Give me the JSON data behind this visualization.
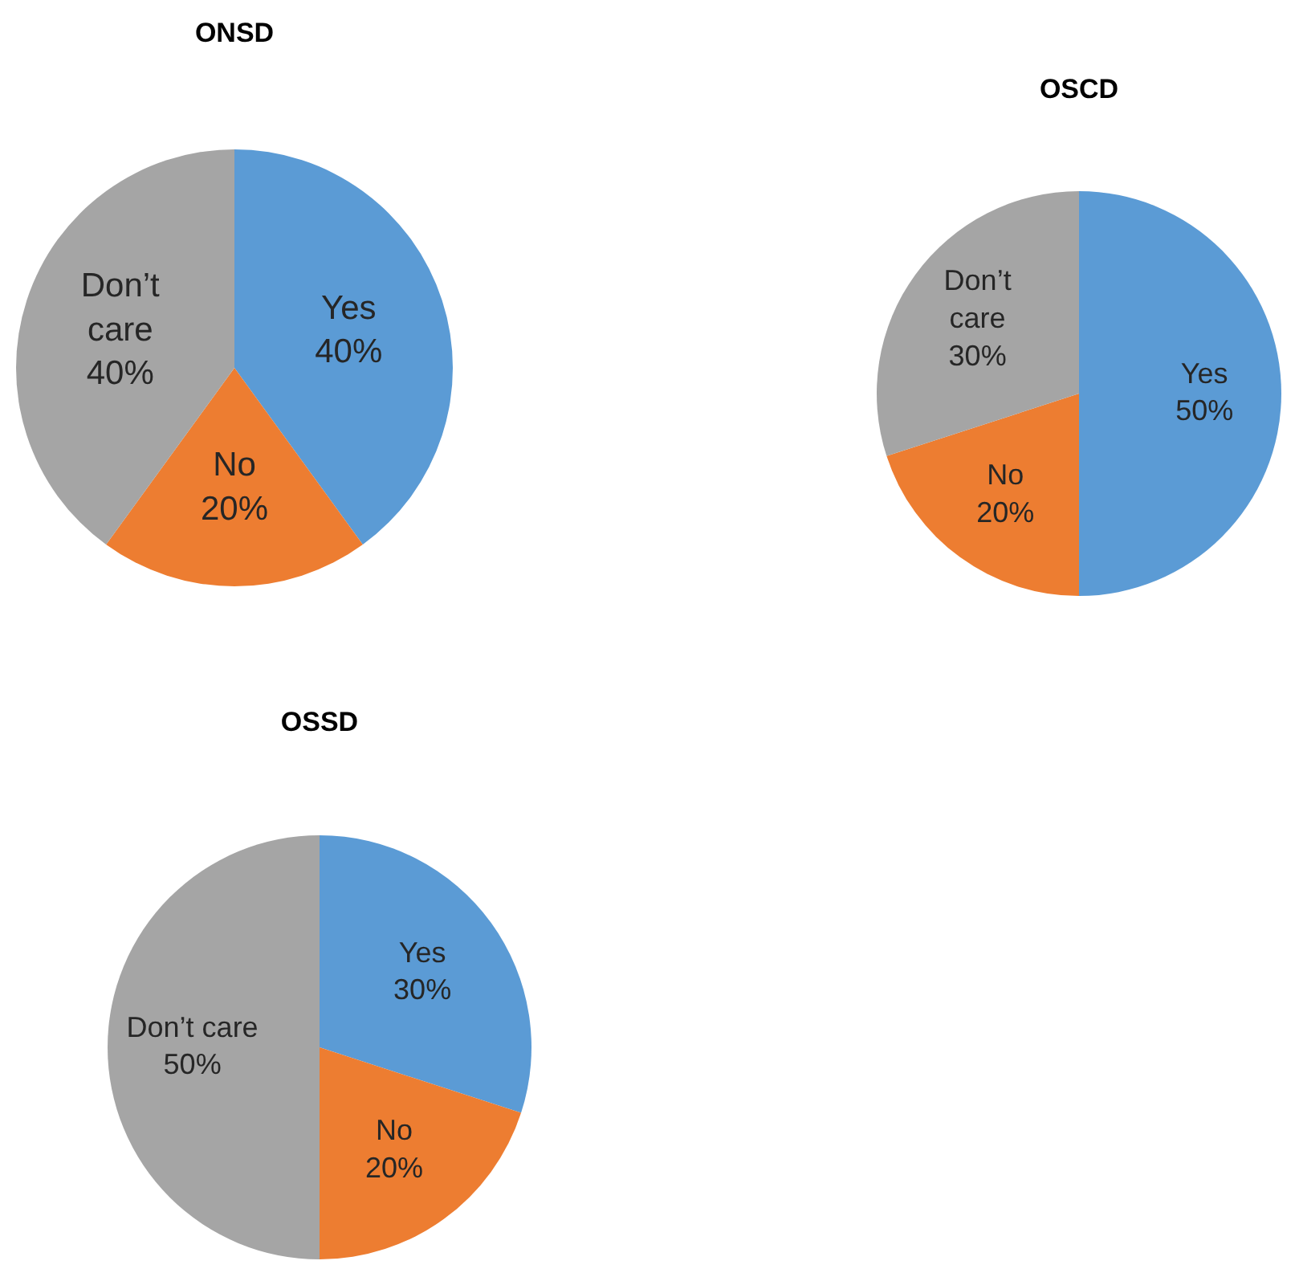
{
  "chart_data": [
    {
      "type": "pie",
      "title": "ONSD",
      "categories": [
        "Yes",
        "No",
        "Don’t care"
      ],
      "values": [
        40,
        20,
        40
      ],
      "value_labels": [
        "40%",
        "20%",
        "40%"
      ],
      "colors": [
        "#5b9bd5",
        "#ed7d31",
        "#a5a5a5"
      ]
    },
    {
      "type": "pie",
      "title": "OSCD",
      "categories": [
        "Yes",
        "No",
        "Don’t care"
      ],
      "values": [
        50,
        20,
        30
      ],
      "value_labels": [
        "50%",
        "20%",
        "30%"
      ],
      "colors": [
        "#5b9bd5",
        "#ed7d31",
        "#a5a5a5"
      ]
    },
    {
      "type": "pie",
      "title": "OSSD",
      "categories": [
        "Yes",
        "No",
        "Don’t care"
      ],
      "values": [
        30,
        20,
        50
      ],
      "value_labels": [
        "30%",
        "20%",
        "50%"
      ],
      "colors": [
        "#5b9bd5",
        "#ed7d31",
        "#a5a5a5"
      ]
    }
  ]
}
